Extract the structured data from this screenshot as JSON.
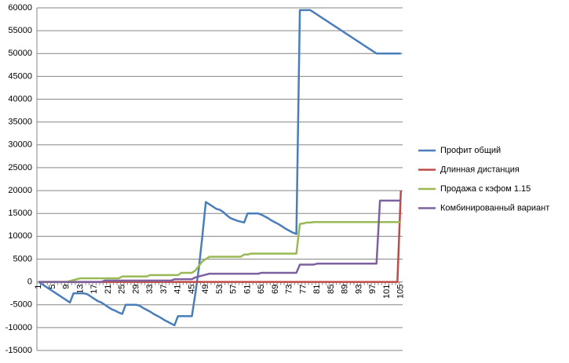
{
  "chart_data": {
    "type": "line",
    "categories": [
      1,
      null,
      null,
      null,
      5,
      null,
      null,
      null,
      9,
      null,
      null,
      null,
      13,
      null,
      null,
      null,
      17,
      null,
      null,
      null,
      21,
      null,
      null,
      null,
      25,
      null,
      null,
      null,
      29,
      null,
      null,
      null,
      33,
      null,
      null,
      null,
      37,
      null,
      null,
      null,
      41,
      null,
      null,
      null,
      45,
      null,
      null,
      null,
      49,
      null,
      null,
      null,
      53,
      null,
      null,
      null,
      57,
      null,
      null,
      null,
      61,
      null,
      null,
      null,
      65,
      null,
      null,
      null,
      69,
      null,
      null,
      null,
      73,
      null,
      null,
      null,
      77,
      null,
      null,
      null,
      81,
      null,
      null,
      null,
      85,
      null,
      null,
      null,
      89,
      null,
      null,
      null,
      93,
      null,
      null,
      null,
      97,
      null,
      null,
      null,
      101,
      null,
      null,
      null,
      105
    ],
    "series": [
      {
        "name": "Профит общий",
        "color": "#4a7ebb",
        "values": [
          0,
          -500,
          -1000,
          -1500,
          -2000,
          -2500,
          -3000,
          -3500,
          -4000,
          -4500,
          -2500,
          -2500,
          -2500,
          -2500,
          -2700,
          -3200,
          -3700,
          -4200,
          -4500,
          -5000,
          -5500,
          -6000,
          -6300,
          -6700,
          -7000,
          -5000,
          -5000,
          -5000,
          -5000,
          -5200,
          -5700,
          -6100,
          -6500,
          -7000,
          -7400,
          -7800,
          -8300,
          -8700,
          -9100,
          -9500,
          -7500,
          -7500,
          -7500,
          -7500,
          -7500,
          -2500,
          3000,
          10000,
          17500,
          17000,
          16500,
          16000,
          15800,
          15300,
          14600,
          14000,
          13700,
          13400,
          13200,
          13000,
          15000,
          15000,
          15000,
          15000,
          14700,
          14300,
          13900,
          13400,
          13000,
          12600,
          12100,
          11600,
          11200,
          10800,
          10500,
          59500,
          59500,
          59500,
          59500,
          59000,
          58500,
          58000,
          57500,
          57000,
          56500,
          56000,
          55500,
          55000,
          54500,
          54000,
          53500,
          53000,
          52500,
          52000,
          51500,
          51000,
          50500,
          50000,
          50000,
          50000,
          50000,
          50000,
          50000,
          50000,
          50000
        ]
      },
      {
        "name": "Длинная дистанция",
        "color": "#be4b48",
        "values": [
          0,
          0,
          0,
          0,
          0,
          0,
          0,
          0,
          0,
          0,
          0,
          0,
          0,
          0,
          0,
          0,
          0,
          0,
          0,
          0,
          0,
          0,
          0,
          0,
          0,
          0,
          0,
          0,
          0,
          0,
          0,
          0,
          0,
          0,
          0,
          0,
          0,
          0,
          0,
          0,
          0,
          0,
          0,
          0,
          0,
          0,
          0,
          0,
          0,
          0,
          0,
          0,
          0,
          0,
          0,
          0,
          0,
          0,
          0,
          0,
          0,
          0,
          0,
          0,
          0,
          0,
          0,
          0,
          0,
          0,
          0,
          0,
          0,
          0,
          0,
          0,
          0,
          0,
          0,
          0,
          0,
          0,
          0,
          0,
          0,
          0,
          0,
          0,
          0,
          0,
          0,
          0,
          0,
          0,
          0,
          0,
          0,
          0,
          0,
          0,
          0,
          0,
          0,
          0,
          20000
        ]
      },
      {
        "name": "Продажа с кэфом 1.15",
        "color": "#98b954",
        "values": [
          0,
          0,
          0,
          0,
          0,
          0,
          0,
          0,
          0,
          200,
          400,
          600,
          800,
          800,
          800,
          800,
          800,
          800,
          800,
          800,
          800,
          800,
          800,
          800,
          1200,
          1200,
          1200,
          1200,
          1200,
          1200,
          1200,
          1200,
          1500,
          1500,
          1500,
          1500,
          1500,
          1500,
          1500,
          1500,
          1500,
          2000,
          2000,
          2000,
          2000,
          2500,
          3500,
          4500,
          5000,
          5500,
          5500,
          5500,
          5500,
          5500,
          5500,
          5500,
          5500,
          5500,
          5500,
          6000,
          6000,
          6200,
          6200,
          6200,
          6200,
          6200,
          6200,
          6200,
          6200,
          6200,
          6200,
          6200,
          6200,
          6200,
          6200,
          12700,
          12800,
          13000,
          13000,
          13100,
          13100,
          13100,
          13100,
          13100,
          13100,
          13100,
          13100,
          13100,
          13100,
          13100,
          13100,
          13100,
          13100,
          13100,
          13100,
          13100,
          13100,
          13100,
          13100,
          13100,
          13100,
          13100,
          13100,
          13100,
          13100
        ]
      },
      {
        "name": "Комбинированный вариант",
        "color": "#7d60a0",
        "values": [
          0,
          0,
          0,
          0,
          0,
          0,
          0,
          0,
          0,
          0,
          0,
          0,
          0,
          0,
          0,
          0,
          0,
          0,
          0,
          300,
          300,
          300,
          300,
          300,
          300,
          300,
          300,
          300,
          300,
          300,
          300,
          300,
          300,
          300,
          300,
          300,
          300,
          300,
          300,
          600,
          600,
          600,
          600,
          600,
          600,
          1000,
          1200,
          1400,
          1600,
          1800,
          1800,
          1800,
          1800,
          1800,
          1800,
          1800,
          1800,
          1800,
          1800,
          1800,
          1800,
          1800,
          1800,
          1800,
          2000,
          2000,
          2000,
          2000,
          2000,
          2000,
          2000,
          2000,
          2000,
          2000,
          2000,
          3800,
          3800,
          3800,
          3800,
          3800,
          4000,
          4000,
          4000,
          4000,
          4000,
          4000,
          4000,
          4000,
          4000,
          4000,
          4000,
          4000,
          4000,
          4000,
          4000,
          4000,
          4000,
          4000,
          17800,
          17800,
          17800,
          17800,
          17800,
          17800,
          17800
        ]
      }
    ],
    "ylim": [
      -15000,
      60000
    ],
    "yticks": [
      -15000,
      -10000,
      -5000,
      0,
      5000,
      10000,
      15000,
      20000,
      25000,
      30000,
      35000,
      40000,
      45000,
      50000,
      55000,
      60000
    ],
    "grid": true,
    "legend": "right"
  }
}
